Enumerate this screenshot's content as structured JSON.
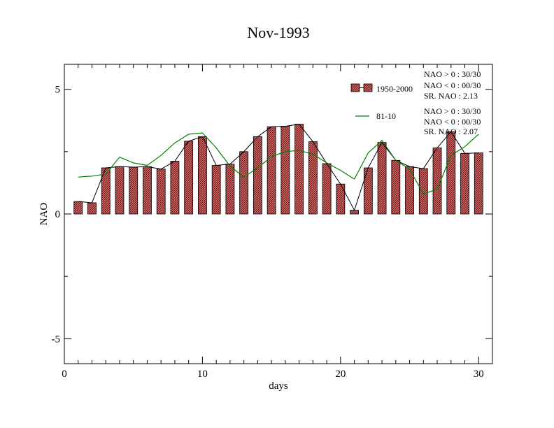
{
  "chart_data": {
    "type": "bar",
    "title": "Nov-1993",
    "xlabel": "days",
    "ylabel": "NAO",
    "xlim": [
      0,
      31
    ],
    "ylim": [
      -6,
      6
    ],
    "xticks": [
      0,
      10,
      20,
      30
    ],
    "yticks": [
      -5,
      0,
      5
    ],
    "x": [
      1,
      2,
      3,
      4,
      5,
      6,
      7,
      8,
      9,
      10,
      11,
      12,
      13,
      14,
      15,
      16,
      17,
      18,
      19,
      20,
      21,
      22,
      23,
      24,
      25,
      26,
      27,
      28,
      29,
      30
    ],
    "series": [
      {
        "name": "1950-2000",
        "kind": "bar",
        "color": "#e06060",
        "values": [
          0.5,
          0.45,
          1.85,
          1.9,
          1.88,
          1.9,
          1.8,
          2.12,
          2.92,
          3.1,
          1.95,
          2.0,
          2.5,
          3.1,
          3.5,
          3.52,
          3.6,
          2.9,
          2.02,
          1.2,
          0.15,
          1.85,
          2.87,
          2.15,
          1.9,
          1.82,
          2.65,
          3.3,
          2.43,
          2.45
        ]
      },
      {
        "name": "81-10",
        "kind": "line",
        "color": "#008000",
        "values": [
          1.48,
          1.52,
          1.6,
          2.28,
          2.05,
          1.95,
          2.35,
          2.85,
          3.2,
          3.25,
          2.65,
          1.92,
          1.48,
          1.85,
          2.3,
          2.5,
          2.55,
          2.4,
          2.05,
          1.75,
          1.4,
          2.45,
          2.95,
          2.15,
          1.8,
          0.8,
          1.0,
          2.35,
          2.7,
          3.2
        ]
      }
    ],
    "legend": [
      {
        "label": "1950-2000",
        "stats": [
          "NAO > 0 : 30/30",
          "NAO < 0 : 00/30",
          "SR. NAO :  2.13"
        ]
      },
      {
        "label": "81-10",
        "stats": [
          "NAO > 0 : 30/30",
          "NAO < 0 : 00/30",
          "SR. NAO :  2.07"
        ]
      }
    ],
    "legend_position": "top-right",
    "grid": false
  }
}
